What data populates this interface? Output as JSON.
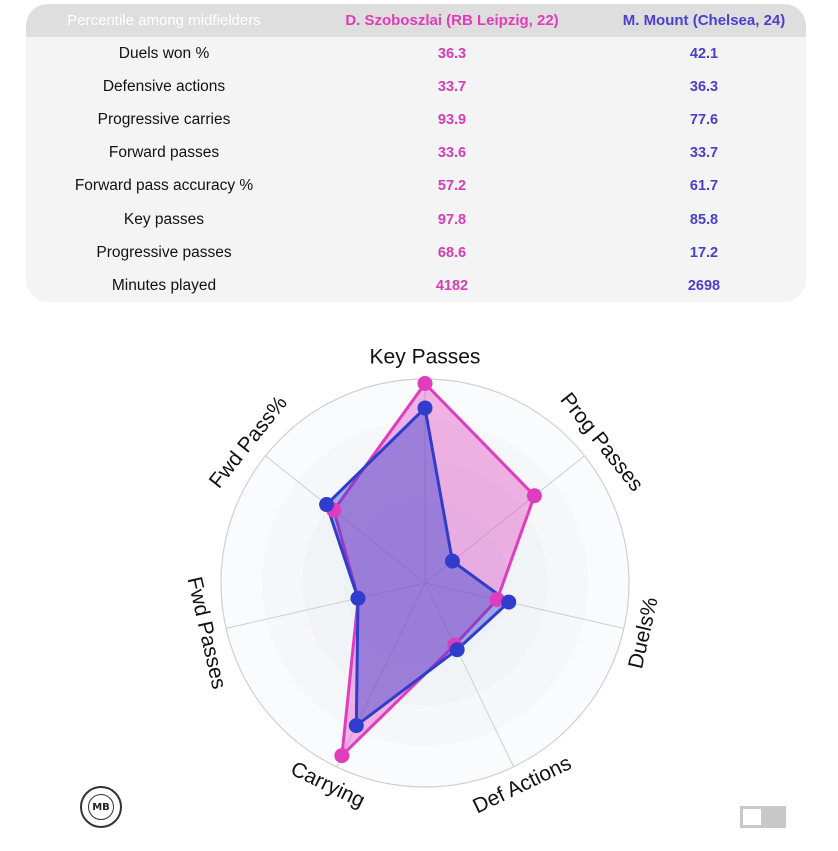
{
  "table": {
    "header": {
      "label": "Percentile among midfielders",
      "player1": "D. Szoboszlai (RB Leipzig, 22)",
      "player2": "M. Mount (Chelsea, 24)"
    },
    "rows": [
      {
        "label": "Duels won %",
        "p1": "36.3",
        "p2": "42.1"
      },
      {
        "label": "Defensive actions",
        "p1": "33.7",
        "p2": "36.3"
      },
      {
        "label": "Progressive carries",
        "p1": "93.9",
        "p2": "77.6"
      },
      {
        "label": "Forward passes",
        "p1": "33.6",
        "p2": "33.7"
      },
      {
        "label": "Forward pass accuracy %",
        "p1": "57.2",
        "p2": "61.7"
      },
      {
        "label": "Key passes",
        "p1": "97.8",
        "p2": "85.8"
      },
      {
        "label": "Progressive passes",
        "p1": "68.6",
        "p2": "17.2"
      },
      {
        "label": "Minutes played",
        "p1": "4182",
        "p2": "2698"
      }
    ]
  },
  "chart_data": {
    "type": "radar",
    "axes": [
      "Key Passes",
      "Prog Passes",
      "Duels%",
      "Def Actions",
      "Carrying",
      "Fwd Passes",
      "Fwd Pass%"
    ],
    "range": [
      0,
      100
    ],
    "series": [
      {
        "name": "D. Szoboszlai (RB Leipzig, 22)",
        "color": "#e03cbe",
        "values": [
          97.8,
          68.6,
          36.3,
          33.7,
          93.9,
          33.6,
          57.2
        ]
      },
      {
        "name": "M. Mount (Chelsea, 24)",
        "color": "#2f3ccc",
        "values": [
          85.8,
          17.2,
          42.1,
          36.3,
          77.6,
          33.7,
          61.7
        ]
      }
    ]
  },
  "logo": {
    "text": "MB"
  },
  "colors": {
    "player1": "#e03cbe",
    "player2": "#2f3ccc",
    "overlap": "#9a7bd8"
  }
}
